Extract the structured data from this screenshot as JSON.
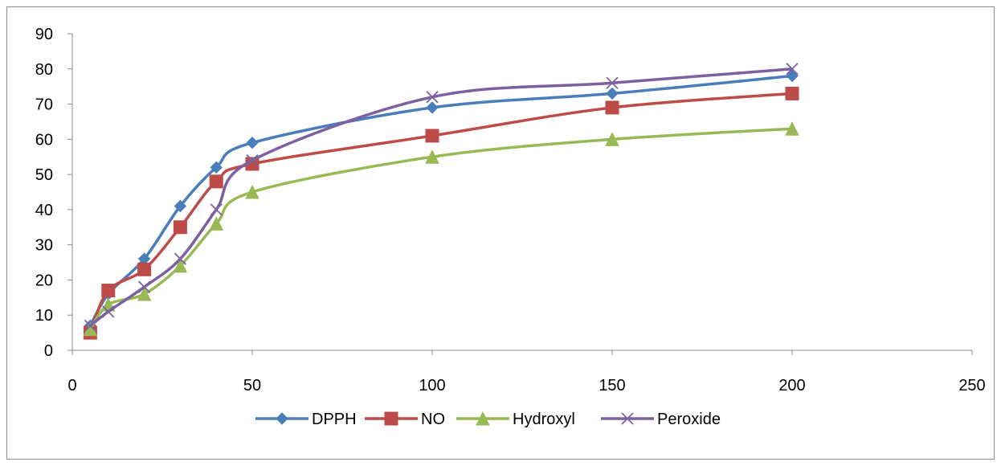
{
  "chart_data": {
    "type": "line",
    "title": "",
    "xlabel": "",
    "ylabel": "",
    "xlim": [
      0,
      250
    ],
    "ylim": [
      0,
      90
    ],
    "x_ticks": [
      0,
      50,
      100,
      150,
      200,
      250
    ],
    "y_ticks": [
      0,
      10,
      20,
      30,
      40,
      50,
      60,
      70,
      80,
      90
    ],
    "grid": false,
    "smooth": true,
    "legend_position": "bottom",
    "x": [
      5,
      10,
      20,
      30,
      40,
      50,
      100,
      150,
      200
    ],
    "series": [
      {
        "name": "DPPH",
        "color": "#4a7ebb",
        "marker": "diamond",
        "values": [
          7,
          16,
          26,
          41,
          52,
          59,
          69,
          73,
          78
        ]
      },
      {
        "name": "NO",
        "color": "#be4b48",
        "marker": "square",
        "values": [
          5,
          17,
          23,
          35,
          48,
          53,
          61,
          69,
          73
        ]
      },
      {
        "name": "Hydroxyl",
        "color": "#98b954",
        "marker": "triangle",
        "values": [
          6,
          13,
          16,
          24,
          36,
          45,
          55,
          60,
          63
        ]
      },
      {
        "name": "Peroxide",
        "color": "#7d60a0",
        "marker": "x",
        "values": [
          7,
          11,
          18,
          26,
          40,
          54,
          72,
          76,
          80
        ]
      }
    ]
  }
}
